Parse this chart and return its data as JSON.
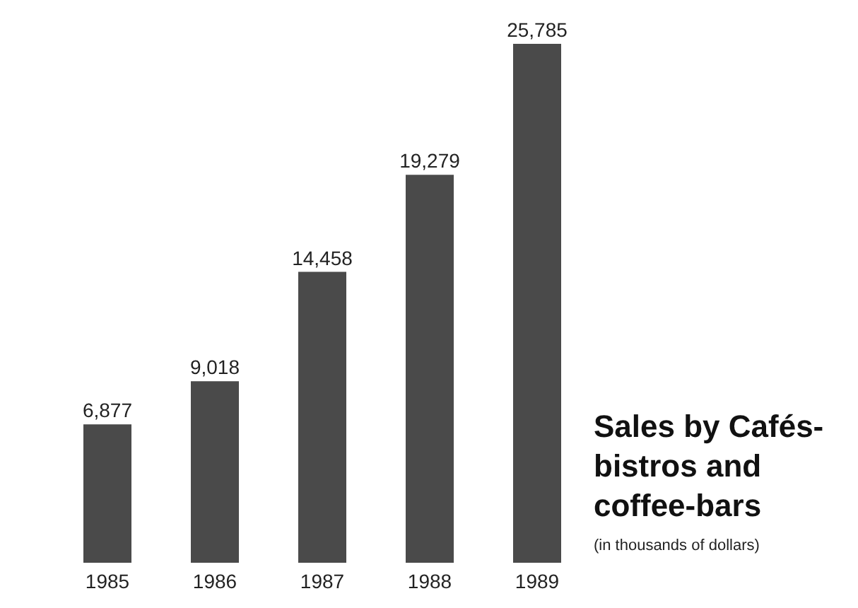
{
  "chart_data": {
    "type": "bar",
    "title": "Sales by Cafés-bistros and coffee-bars",
    "subtitle": "(in thousands of dollars)",
    "categories": [
      "1985",
      "1986",
      "1987",
      "1988",
      "1989"
    ],
    "values": [
      6877,
      9018,
      14458,
      19279,
      25785
    ],
    "value_labels": [
      "6,877",
      "9,018",
      "14,458",
      "19,279",
      "25,785"
    ],
    "color": "#4a4a4a",
    "tick_labels": "x"
  }
}
